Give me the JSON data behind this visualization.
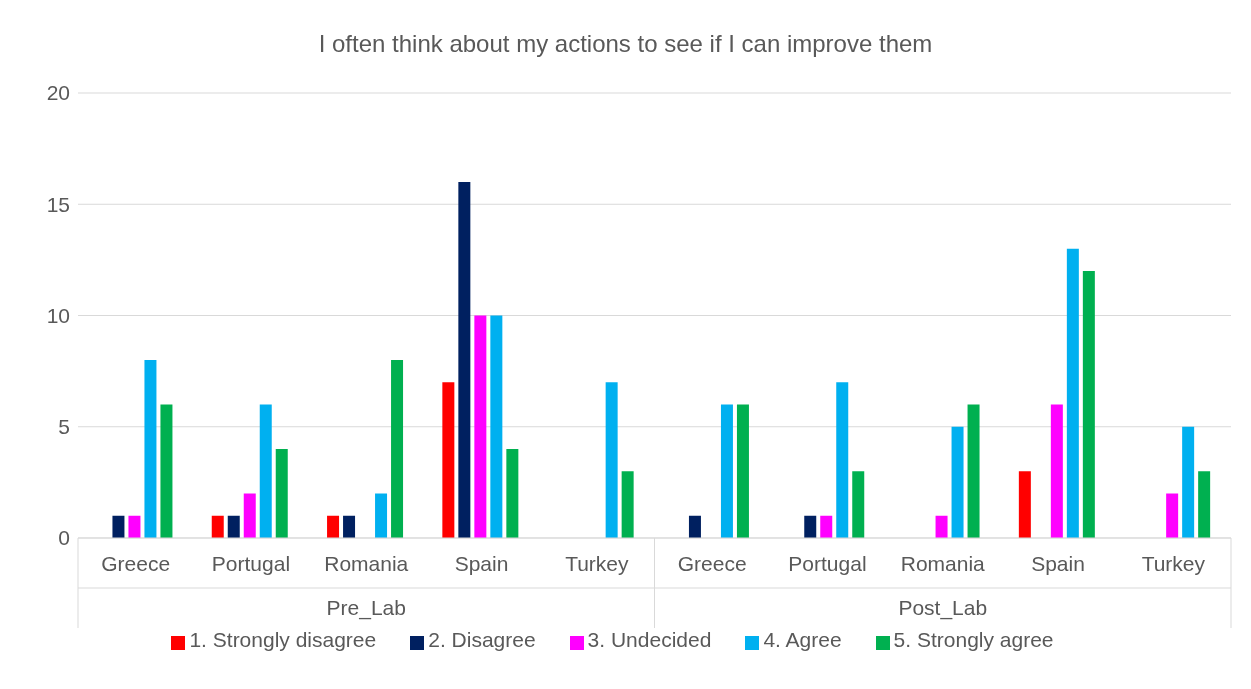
{
  "chart_data": {
    "type": "bar",
    "title": "I often think about my actions to see if I can improve them",
    "categories": [
      "Greece",
      "Portugal",
      "Romania",
      "Spain",
      "Turkey",
      "Greece",
      "Portugal",
      "Romania",
      "Spain",
      "Turkey"
    ],
    "annotations": [
      "Pre_Lab",
      "Post_Lab"
    ],
    "series": [
      {
        "name": "1. Strongly disagree",
        "color": "#ff0000",
        "values": [
          0,
          1,
          1,
          7,
          0,
          0,
          0,
          0,
          3,
          0
        ]
      },
      {
        "name": "2. Disagree",
        "color": "#002060",
        "values": [
          1,
          1,
          1,
          16,
          0,
          1,
          1,
          0,
          0,
          0
        ]
      },
      {
        "name": "3. Undecided",
        "color": "#ff00ff",
        "values": [
          1,
          2,
          0,
          10,
          0,
          0,
          1,
          1,
          6,
          2
        ]
      },
      {
        "name": "4. Agree",
        "color": "#00b0f0",
        "values": [
          8,
          6,
          2,
          10,
          7,
          6,
          7,
          5,
          13,
          5
        ]
      },
      {
        "name": "5. Strongly agree",
        "color": "#00b050",
        "values": [
          6,
          4,
          8,
          4,
          3,
          6,
          3,
          6,
          12,
          3
        ]
      }
    ],
    "ylim": [
      0,
      20
    ],
    "yticks": [
      0,
      5,
      10,
      15,
      20
    ],
    "grid": "y",
    "legend": "bottom"
  }
}
